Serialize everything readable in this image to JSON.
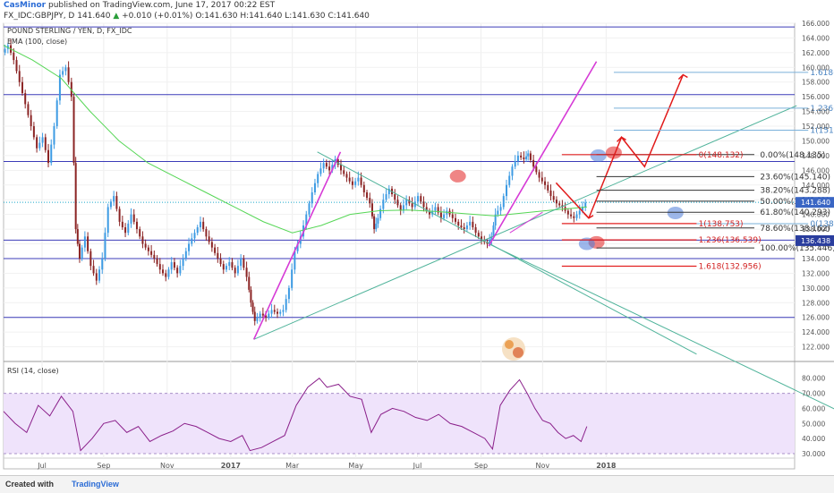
{
  "header": {
    "publisher": "CasMinor",
    "published_text": "published on TradingView.com, June 17, 2017 00:22 EST",
    "symbol": "FX_IDC:GBPJPY, D",
    "last": "141.640",
    "change": "+0.010 (+0.01%)",
    "ohlc": "O:141.630 H:141.640 L:141.630 C:141.640"
  },
  "footer": {
    "created_with": "Created with",
    "brand": "TradingView"
  },
  "chart_data": [
    {
      "type": "candlestick",
      "title": "POUND STERLING / YEN, D, FX_IDC",
      "indicator": "EMA (100, close)",
      "y_axis": {
        "position": "right",
        "range": [
          120,
          166
        ],
        "ticks": [
          122,
          124,
          126,
          128,
          130,
          132,
          134,
          136,
          138,
          140,
          142,
          144,
          146,
          148,
          150,
          152,
          154,
          156,
          158,
          160,
          162,
          164,
          166
        ]
      },
      "x_ticks": [
        "Jul",
        "Sep",
        "Nov",
        "2017",
        "Mar",
        "May",
        "Jul",
        "Sep",
        "Nov",
        "2018"
      ],
      "price_badges": [
        {
          "value": "141.640",
          "price": 141.64,
          "color": "#3a66c4"
        },
        {
          "value": "136.438",
          "price": 136.438,
          "color": "#2a3d9e"
        }
      ],
      "price_path": [
        [
          0,
          162.0
        ],
        [
          3,
          163.0
        ],
        [
          6,
          161.0
        ],
        [
          9,
          158.0
        ],
        [
          12,
          155.0
        ],
        [
          15,
          152.0
        ],
        [
          18,
          149.0
        ],
        [
          21,
          150.5
        ],
        [
          24,
          147.0
        ],
        [
          27,
          152.0
        ],
        [
          30,
          159.0
        ],
        [
          33,
          160.0
        ],
        [
          36,
          156.0
        ],
        [
          38,
          138.0
        ],
        [
          40,
          134.0
        ],
        [
          43,
          137.0
        ],
        [
          46,
          133.0
        ],
        [
          49,
          131.0
        ],
        [
          52,
          134.0
        ],
        [
          55,
          141.0
        ],
        [
          58,
          142.5
        ],
        [
          61,
          139.0
        ],
        [
          64,
          137.5
        ],
        [
          67,
          140.0
        ],
        [
          70,
          138.0
        ],
        [
          73,
          136.0
        ],
        [
          76,
          135.0
        ],
        [
          79,
          134.0
        ],
        [
          82,
          132.5
        ],
        [
          85,
          131.5
        ],
        [
          88,
          133.5
        ],
        [
          91,
          132.0
        ],
        [
          94,
          134.0
        ],
        [
          97,
          136.0
        ],
        [
          100,
          137.5
        ],
        [
          103,
          139.0
        ],
        [
          106,
          137.0
        ],
        [
          109,
          135.5
        ],
        [
          112,
          134.0
        ],
        [
          115,
          132.5
        ],
        [
          118,
          133.5
        ],
        [
          121,
          132.0
        ],
        [
          124,
          134.0
        ],
        [
          127,
          131.5
        ],
        [
          129,
          128.0
        ],
        [
          131,
          125.5
        ],
        [
          134,
          126.5
        ],
        [
          137,
          126.0
        ],
        [
          140,
          127.0
        ],
        [
          143,
          126.5
        ],
        [
          146,
          127.0
        ],
        [
          149,
          130.0
        ],
        [
          152,
          135.0
        ],
        [
          155,
          137.0
        ],
        [
          158,
          140.0
        ],
        [
          161,
          143.0
        ],
        [
          164,
          145.5
        ],
        [
          167,
          147.0
        ],
        [
          170,
          146.0
        ],
        [
          173,
          147.5
        ],
        [
          176,
          146.0
        ],
        [
          179,
          145.0
        ],
        [
          182,
          144.0
        ],
        [
          185,
          145.0
        ],
        [
          188,
          143.0
        ],
        [
          191,
          141.5
        ],
        [
          193,
          138.0
        ],
        [
          195,
          139.5
        ],
        [
          198,
          142.0
        ],
        [
          201,
          143.5
        ],
        [
          204,
          142.0
        ],
        [
          207,
          140.5
        ],
        [
          210,
          142.0
        ],
        [
          213,
          141.0
        ],
        [
          216,
          142.5
        ],
        [
          219,
          141.0
        ],
        [
          222,
          140.0
        ],
        [
          225,
          141.0
        ],
        [
          228,
          139.5
        ],
        [
          231,
          140.5
        ],
        [
          234,
          139.5
        ],
        [
          237,
          138.5
        ],
        [
          240,
          138.0
        ],
        [
          243,
          139.0
        ],
        [
          246,
          137.5
        ],
        [
          249,
          136.5
        ],
        [
          252,
          136.0
        ],
        [
          254,
          137.0
        ],
        [
          256,
          140.0
        ],
        [
          259,
          141.0
        ],
        [
          262,
          144.0
        ],
        [
          265,
          146.5
        ],
        [
          268,
          148.0
        ],
        [
          271,
          147.5
        ],
        [
          273,
          148.3
        ],
        [
          276,
          146.5
        ],
        [
          279,
          145.0
        ],
        [
          282,
          144.0
        ],
        [
          285,
          142.5
        ],
        [
          288,
          141.5
        ],
        [
          291,
          141.0
        ],
        [
          294,
          140.0
        ],
        [
          297,
          139.5
        ],
        [
          300,
          140.5
        ],
        [
          303,
          141.6
        ]
      ],
      "ema_path": [
        [
          0,
          163.0
        ],
        [
          15,
          161.0
        ],
        [
          30,
          158.5
        ],
        [
          45,
          154.0
        ],
        [
          60,
          150.0
        ],
        [
          75,
          147.0
        ],
        [
          90,
          145.0
        ],
        [
          105,
          143.0
        ],
        [
          120,
          141.0
        ],
        [
          135,
          139.0
        ],
        [
          150,
          137.5
        ],
        [
          165,
          138.5
        ],
        [
          180,
          140.0
        ],
        [
          195,
          140.5
        ],
        [
          210,
          140.6
        ],
        [
          225,
          140.4
        ],
        [
          240,
          140.1
        ],
        [
          255,
          139.8
        ],
        [
          270,
          140.2
        ],
        [
          285,
          140.6
        ],
        [
          303,
          141.0
        ]
      ],
      "horizontal_levels": [
        165.5,
        156.3,
        147.2,
        136.5,
        134.0,
        126.0
      ],
      "dotted_level": 141.64,
      "fib_retracement": [
        {
          "label": "0.00%(148.135)",
          "price": 148.135
        },
        {
          "label": "23.60%(145.140)",
          "price": 145.14
        },
        {
          "label": "38.20%(143.288)",
          "price": 143.288
        },
        {
          "label": "50.00%(141.791)",
          "price": 141.791
        },
        {
          "label": "61.80%(140.293)",
          "price": 140.293
        },
        {
          "label": "78.60%(138.162)",
          "price": 138.162
        },
        {
          "label": "100.00%(135.446)",
          "price": 135.446
        }
      ],
      "fib_extension_blue": [
        {
          "label": "1.618(159.315)",
          "price": 159.315
        },
        {
          "label": "1.236(154.458)",
          "price": 154.458
        },
        {
          "label": "1(151.458)",
          "price": 151.458
        },
        {
          "label": "0(138.744)",
          "price": 138.744
        }
      ],
      "fib_extension_red": [
        {
          "label": "0(148.132)",
          "price": 148.132
        },
        {
          "label": "1(138.753)",
          "price": 138.753
        },
        {
          "label": "1.236(136.539)",
          "price": 136.539
        },
        {
          "label": "1.618(132.956)",
          "price": 132.956
        }
      ]
    },
    {
      "type": "line",
      "title": "RSI (14, close)",
      "y_axis": {
        "position": "right",
        "range": [
          27,
          84
        ],
        "ticks": [
          30,
          40,
          50,
          60,
          70,
          80
        ]
      },
      "band": [
        30,
        70
      ],
      "series": [
        {
          "values": [
            [
              0,
              58
            ],
            [
              6,
              50
            ],
            [
              12,
              44
            ],
            [
              18,
              62
            ],
            [
              24,
              55
            ],
            [
              30,
              68
            ],
            [
              36,
              58
            ],
            [
              40,
              32
            ],
            [
              46,
              40
            ],
            [
              52,
              50
            ],
            [
              58,
              52
            ],
            [
              64,
              44
            ],
            [
              70,
              48
            ],
            [
              76,
              38
            ],
            [
              82,
              42
            ],
            [
              88,
              45
            ],
            [
              94,
              50
            ],
            [
              100,
              48
            ],
            [
              106,
              44
            ],
            [
              112,
              40
            ],
            [
              118,
              38
            ],
            [
              124,
              42
            ],
            [
              128,
              32
            ],
            [
              134,
              34
            ],
            [
              140,
              38
            ],
            [
              146,
              42
            ],
            [
              152,
              62
            ],
            [
              158,
              74
            ],
            [
              164,
              80
            ],
            [
              168,
              74
            ],
            [
              174,
              76
            ],
            [
              180,
              68
            ],
            [
              186,
              66
            ],
            [
              191,
              44
            ],
            [
              196,
              56
            ],
            [
              202,
              60
            ],
            [
              208,
              58
            ],
            [
              214,
              54
            ],
            [
              220,
              52
            ],
            [
              226,
              56
            ],
            [
              232,
              50
            ],
            [
              238,
              48
            ],
            [
              244,
              44
            ],
            [
              250,
              40
            ],
            [
              254,
              33
            ],
            [
              258,
              62
            ],
            [
              263,
              72
            ],
            [
              268,
              79
            ],
            [
              272,
              70
            ],
            [
              276,
              60
            ],
            [
              280,
              52
            ],
            [
              284,
              50
            ],
            [
              288,
              44
            ],
            [
              292,
              40
            ],
            [
              296,
              42
            ],
            [
              300,
              38
            ],
            [
              303,
              48
            ]
          ]
        }
      ]
    }
  ]
}
